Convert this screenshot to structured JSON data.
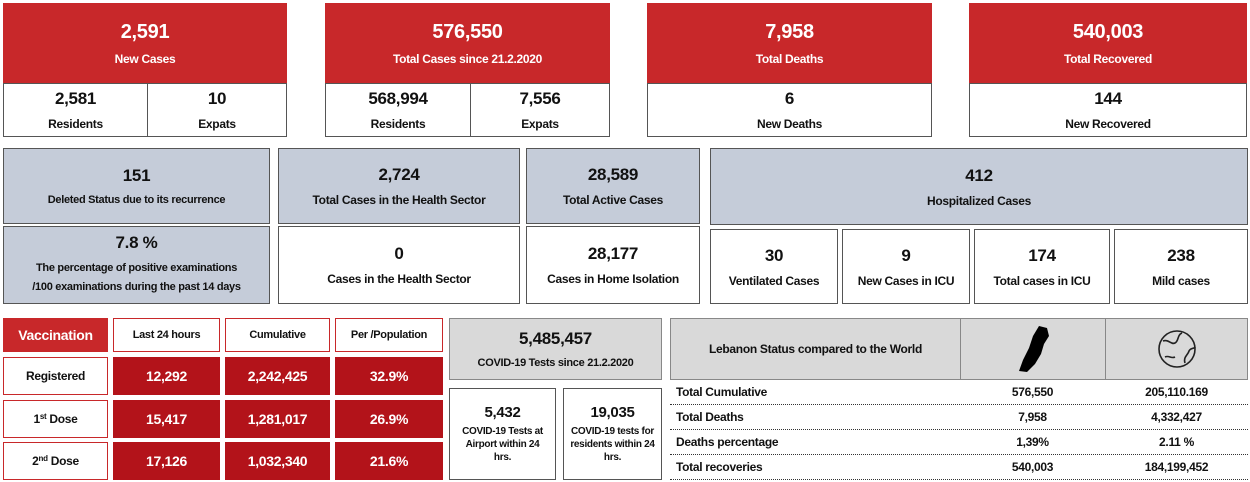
{
  "summary": [
    {
      "value": "2,591",
      "label": "New Cases",
      "breakdown": [
        {
          "value": "2,581",
          "label": "Residents"
        },
        {
          "value": "10",
          "label": "Expats"
        }
      ]
    },
    {
      "value": "576,550",
      "label": "Total Cases since 21.2.2020",
      "breakdown": [
        {
          "value": "568,994",
          "label": "Residents"
        },
        {
          "value": "7,556",
          "label": "Expats"
        }
      ]
    },
    {
      "value": "7,958",
      "label": "Total Deaths",
      "breakdown": [
        {
          "value": "6",
          "label": "New Deaths"
        }
      ]
    },
    {
      "value": "540,003",
      "label": "Total Recovered",
      "breakdown": [
        {
          "value": "144",
          "label": "New Recovered"
        }
      ]
    }
  ],
  "status": {
    "deleted": {
      "value": "151",
      "label": "Deleted Status due to its recurrence"
    },
    "health_sector_total": {
      "value": "2,724",
      "label": "Total Cases in the Health Sector"
    },
    "active": {
      "value": "28,589",
      "label": "Total Active Cases"
    },
    "hospitalized": {
      "value": "412",
      "label": "Hospitalized Cases"
    },
    "positivity": {
      "value": "7.8 %",
      "label": [
        "The percentage of positive examinations",
        "/100 examinations during the past 14 days"
      ]
    },
    "health_sector_new": {
      "value": "0",
      "label": "Cases in the Health Sector"
    },
    "home_isolation": {
      "value": "28,177",
      "label": "Cases in Home Isolation"
    },
    "hospital_breakdown": [
      {
        "value": "30",
        "label": "Ventilated Cases"
      },
      {
        "value": "9",
        "label": "New Cases in ICU"
      },
      {
        "value": "174",
        "label": "Total cases in ICU"
      },
      {
        "value": "238",
        "label": "Mild cases"
      }
    ]
  },
  "vaccination": {
    "header": [
      "Vaccination",
      "Last 24 hours",
      "Cumulative",
      "Per /Population"
    ],
    "rows": [
      {
        "label": [
          "Registered"
        ],
        "values": [
          "12,292",
          "2,242,425",
          "32.9%"
        ]
      },
      {
        "label": [
          "1",
          "st",
          "Dose"
        ],
        "values": [
          "15,417",
          "1,281,017",
          "26.9%"
        ]
      },
      {
        "label": [
          "2",
          "nd",
          "Dose"
        ],
        "values": [
          "17,126",
          "1,032,340",
          "21.6%"
        ]
      }
    ]
  },
  "tests": {
    "total": {
      "value": "5,485,457",
      "label": "COVID-19 Tests since 21.2.2020"
    },
    "airport": {
      "value": "5,432",
      "label": "COVID-19 Tests at Airport within 24 hrs."
    },
    "residents": {
      "value": "19,035",
      "label": "COVID-19 tests for residents within 24 hrs."
    }
  },
  "world": {
    "title": "Lebanon Status compared to the World",
    "rows": [
      {
        "label": "Total Cumulative",
        "lebanon": "576,550",
        "world": "205,110.169"
      },
      {
        "label": "Total Deaths",
        "lebanon": "7,958",
        "world": "4,332,427"
      },
      {
        "label": "Deaths percentage",
        "lebanon": "1,39%",
        "world": "2.11 %"
      },
      {
        "label": "Total recoveries",
        "lebanon": "540,003",
        "world": "184,199,452"
      }
    ]
  }
}
